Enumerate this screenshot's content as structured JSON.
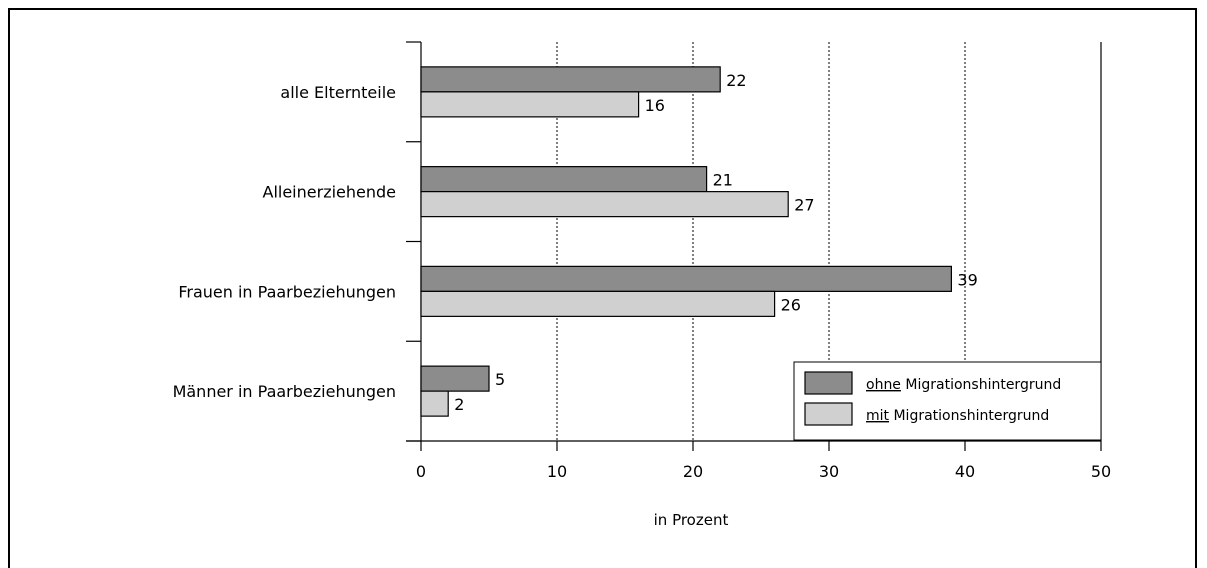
{
  "chart_data": {
    "type": "bar",
    "orientation": "horizontal",
    "categories": [
      "alle Elternteile",
      "Alleinerziehende",
      "Frauen in Paarbeziehungen",
      "Männer in Paarbeziehungen"
    ],
    "series": [
      {
        "name_emph": "ohne",
        "name_rest": " Migrationshintergrund",
        "values": [
          22,
          21,
          39,
          5
        ],
        "color": "#8c8c8c"
      },
      {
        "name_emph": "mit",
        "name_rest": " Migrationshintergrund",
        "values": [
          16,
          27,
          26,
          2
        ],
        "color": "#d0d0d0"
      }
    ],
    "xlabel": "in Prozent",
    "xlim": [
      0,
      50
    ],
    "xticks": [
      "0",
      "10",
      "20",
      "30",
      "40",
      "50"
    ],
    "grid": "vertical dashed",
    "legend": "bottom-right"
  }
}
